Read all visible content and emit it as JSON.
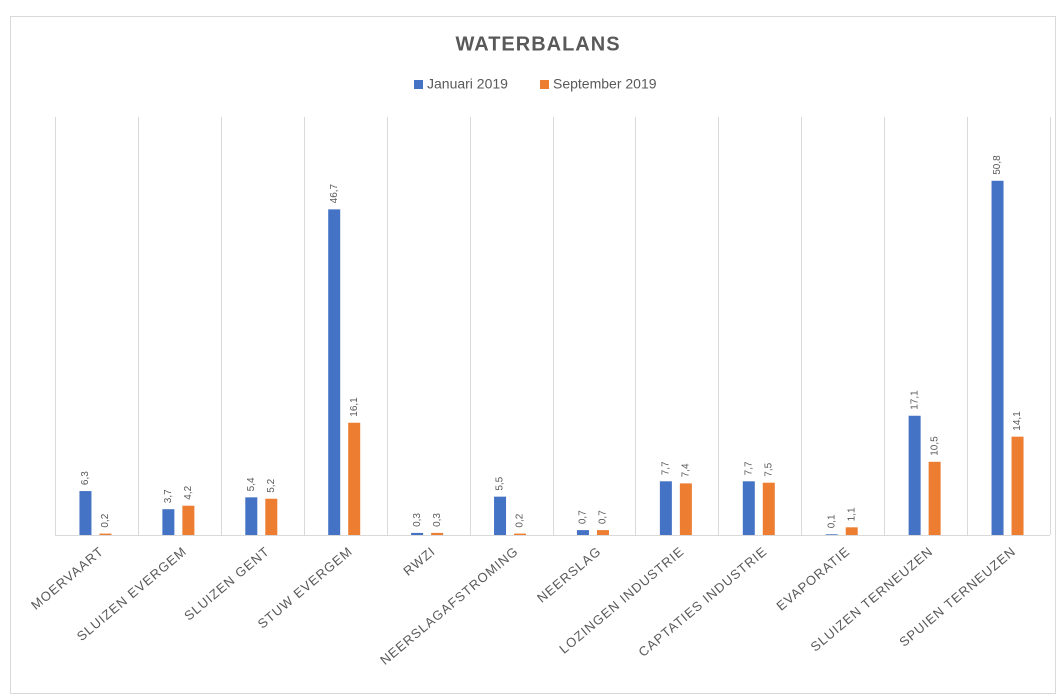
{
  "chart_data": {
    "type": "bar",
    "title": "WATERBALANS",
    "categories": [
      "MOERVAART",
      "SLUIZEN EVERGEM",
      "SLUIZEN GENT",
      "STUW EVERGEM",
      "RWZI",
      "NEERSLAGAFSTROMING",
      "NEERSLAG",
      "LOZINGEN INDUSTRIE",
      "CAPTATIES INDUSTRIE",
      "EVAPORATIE",
      "SLUIZEN TERNEUZEN",
      "SPUIEN TERNEUZEN"
    ],
    "series": [
      {
        "name": "Januari 2019",
        "color": "#4472c4",
        "values": [
          6.3,
          3.7,
          5.4,
          46.7,
          0.3,
          5.5,
          0.7,
          7.7,
          7.7,
          0.1,
          17.1,
          50.8
        ],
        "value_labels": [
          "6,3",
          "3,7",
          "5,4",
          "46,7",
          "0,3",
          "5,5",
          "0,7",
          "7,7",
          "7,7",
          "0,1",
          "17,1",
          "50,8"
        ]
      },
      {
        "name": "September 2019",
        "color": "#ed7d31",
        "values": [
          0.2,
          4.2,
          5.2,
          16.1,
          0.3,
          0.2,
          0.7,
          7.4,
          7.5,
          1.1,
          10.5,
          14.1
        ],
        "value_labels": [
          "0,2",
          "4,2",
          "5,2",
          "16,1",
          "0,3",
          "0,2",
          "0,7",
          "7,4",
          "7,5",
          "1,1",
          "10,5",
          "14,1"
        ]
      }
    ],
    "grid": true,
    "legend": "top"
  }
}
